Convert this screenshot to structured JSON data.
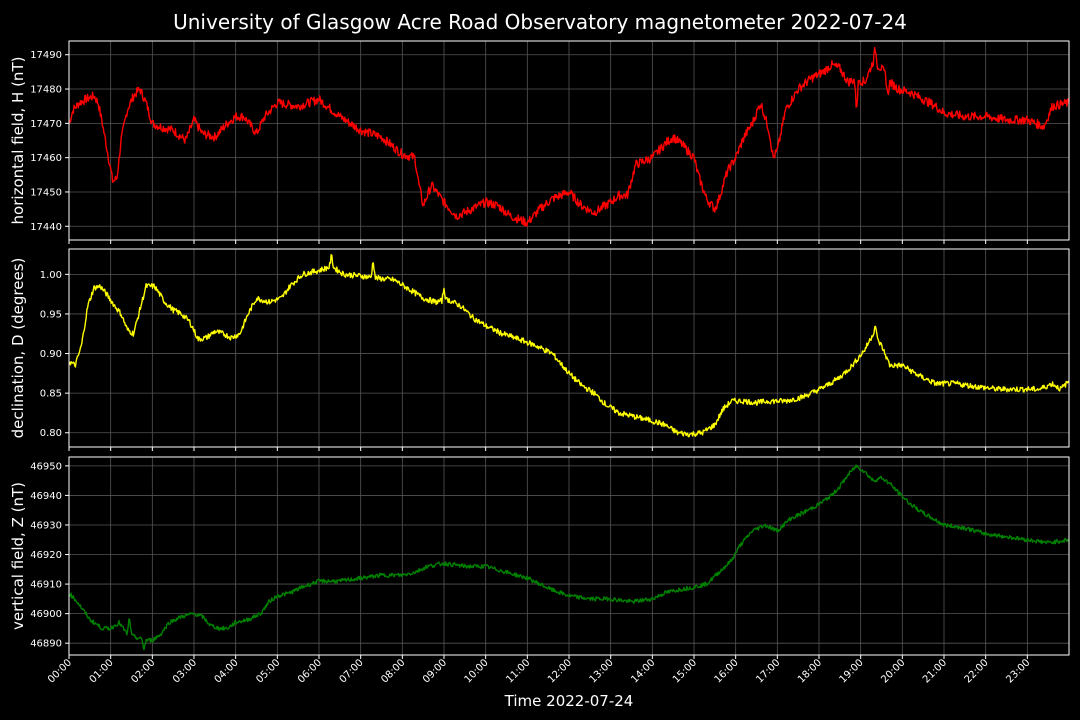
{
  "chart_data": {
    "type": "line",
    "title": "University of Glasgow Acre Road Observatory magnetometer 2022-07-24",
    "xlabel": "Time 2022-07-24",
    "x_unit": "hours",
    "x_ticks": [
      "00:00",
      "01:00",
      "02:00",
      "03:00",
      "04:00",
      "05:00",
      "06:00",
      "07:00",
      "08:00",
      "09:00",
      "10:00",
      "11:00",
      "12:00",
      "13:00",
      "14:00",
      "15:00",
      "16:00",
      "17:00",
      "18:00",
      "19:00",
      "20:00",
      "21:00",
      "22:00",
      "23:00"
    ],
    "xlim": [
      0,
      24
    ],
    "grid": true,
    "panels": [
      {
        "name": "horizontal",
        "ylabel": "horizontal field, H (nT)",
        "color": "#ff0000",
        "ylim": [
          17436,
          17494
        ],
        "y_ticks": [
          17440,
          17450,
          17460,
          17470,
          17480,
          17490
        ],
        "noise": 1.3,
        "points": [
          [
            0,
            17470
          ],
          [
            0.1,
            17474
          ],
          [
            0.25,
            17476
          ],
          [
            0.4,
            17477
          ],
          [
            0.6,
            17478
          ],
          [
            0.7,
            17476
          ],
          [
            0.8,
            17470
          ],
          [
            0.95,
            17460
          ],
          [
            1.05,
            17453
          ],
          [
            1.15,
            17454
          ],
          [
            1.25,
            17465
          ],
          [
            1.4,
            17474
          ],
          [
            1.55,
            17478
          ],
          [
            1.7,
            17480
          ],
          [
            1.85,
            17476
          ],
          [
            2.0,
            17470
          ],
          [
            2.2,
            17469
          ],
          [
            2.5,
            17468
          ],
          [
            2.8,
            17465
          ],
          [
            3.0,
            17471
          ],
          [
            3.2,
            17467
          ],
          [
            3.5,
            17466
          ],
          [
            3.8,
            17470
          ],
          [
            4.0,
            17472
          ],
          [
            4.2,
            17472
          ],
          [
            4.5,
            17467
          ],
          [
            4.7,
            17472
          ],
          [
            5.0,
            17476
          ],
          [
            5.5,
            17475
          ],
          [
            6.0,
            17477
          ],
          [
            6.5,
            17472
          ],
          [
            7.0,
            17468
          ],
          [
            7.5,
            17466
          ],
          [
            8.0,
            17461
          ],
          [
            8.3,
            17460
          ],
          [
            8.4,
            17452
          ],
          [
            8.5,
            17446
          ],
          [
            8.7,
            17452
          ],
          [
            9.0,
            17447
          ],
          [
            9.3,
            17443
          ],
          [
            9.5,
            17444
          ],
          [
            10.0,
            17447
          ],
          [
            10.3,
            17446
          ],
          [
            10.6,
            17443
          ],
          [
            10.8,
            17442
          ],
          [
            11.0,
            17441
          ],
          [
            11.3,
            17445
          ],
          [
            11.6,
            17448
          ],
          [
            12.0,
            17450
          ],
          [
            12.3,
            17446
          ],
          [
            12.6,
            17444
          ],
          [
            13.0,
            17447
          ],
          [
            13.2,
            17449
          ],
          [
            13.4,
            17449
          ],
          [
            13.6,
            17458
          ],
          [
            14.0,
            17460
          ],
          [
            14.3,
            17464
          ],
          [
            14.5,
            17466
          ],
          [
            14.7,
            17464
          ],
          [
            15.0,
            17460
          ],
          [
            15.1,
            17455
          ],
          [
            15.3,
            17448
          ],
          [
            15.5,
            17445
          ],
          [
            15.6,
            17448
          ],
          [
            15.8,
            17456
          ],
          [
            16.0,
            17460
          ],
          [
            16.2,
            17466
          ],
          [
            16.4,
            17470
          ],
          [
            16.6,
            17476
          ],
          [
            16.8,
            17468
          ],
          [
            16.9,
            17460
          ],
          [
            17.0,
            17462
          ],
          [
            17.2,
            17474
          ],
          [
            17.5,
            17480
          ],
          [
            17.8,
            17483
          ],
          [
            18.1,
            17485
          ],
          [
            18.3,
            17487
          ],
          [
            18.5,
            17486
          ],
          [
            18.7,
            17482
          ],
          [
            18.9,
            17483
          ],
          [
            19.1,
            17482
          ],
          [
            19.3,
            17488
          ],
          [
            19.5,
            17486
          ],
          [
            19.7,
            17482
          ],
          [
            19.9,
            17480
          ],
          [
            20.2,
            17479
          ],
          [
            20.5,
            17477
          ],
          [
            20.8,
            17475
          ],
          [
            21.0,
            17473
          ],
          [
            21.5,
            17472
          ],
          [
            22.0,
            17472
          ],
          [
            22.5,
            17471
          ],
          [
            23.0,
            17471
          ],
          [
            23.4,
            17469
          ],
          [
            23.6,
            17475
          ],
          [
            24.0,
            17476
          ]
        ],
        "spikes": [
          [
            18.9,
            17474
          ],
          [
            19.35,
            17492
          ],
          [
            19.65,
            17478
          ]
        ]
      },
      {
        "name": "declination",
        "ylabel": "declination, D (degrees)",
        "color": "#ffff00",
        "ylim": [
          0.782,
          1.032
        ],
        "y_ticks": [
          0.8,
          0.85,
          0.9,
          0.95,
          1.0
        ],
        "y_decimals": 2,
        "noise": 0.0035,
        "points": [
          [
            0,
            0.89
          ],
          [
            0.15,
            0.885
          ],
          [
            0.3,
            0.91
          ],
          [
            0.45,
            0.96
          ],
          [
            0.6,
            0.983
          ],
          [
            0.75,
            0.985
          ],
          [
            0.9,
            0.975
          ],
          [
            1.1,
            0.96
          ],
          [
            1.25,
            0.95
          ],
          [
            1.4,
            0.93
          ],
          [
            1.55,
            0.925
          ],
          [
            1.7,
            0.955
          ],
          [
            1.85,
            0.985
          ],
          [
            2.05,
            0.985
          ],
          [
            2.3,
            0.965
          ],
          [
            2.5,
            0.955
          ],
          [
            2.7,
            0.95
          ],
          [
            2.9,
            0.94
          ],
          [
            3.1,
            0.918
          ],
          [
            3.3,
            0.92
          ],
          [
            3.5,
            0.928
          ],
          [
            3.7,
            0.925
          ],
          [
            3.9,
            0.92
          ],
          [
            4.1,
            0.925
          ],
          [
            4.3,
            0.95
          ],
          [
            4.5,
            0.97
          ],
          [
            4.8,
            0.965
          ],
          [
            5.1,
            0.97
          ],
          [
            5.3,
            0.985
          ],
          [
            5.6,
            1.0
          ],
          [
            6.0,
            1.005
          ],
          [
            6.3,
            1.01
          ],
          [
            6.6,
            1.0
          ],
          [
            7.0,
            0.998
          ],
          [
            7.4,
            0.995
          ],
          [
            7.8,
            0.993
          ],
          [
            8.2,
            0.98
          ],
          [
            8.5,
            0.97
          ],
          [
            8.8,
            0.965
          ],
          [
            9.1,
            0.968
          ],
          [
            9.4,
            0.96
          ],
          [
            9.7,
            0.945
          ],
          [
            10.0,
            0.935
          ],
          [
            10.4,
            0.925
          ],
          [
            10.8,
            0.918
          ],
          [
            11.2,
            0.91
          ],
          [
            11.6,
            0.9
          ],
          [
            12.0,
            0.875
          ],
          [
            12.3,
            0.86
          ],
          [
            12.6,
            0.85
          ],
          [
            12.9,
            0.835
          ],
          [
            13.2,
            0.825
          ],
          [
            13.6,
            0.82
          ],
          [
            14.0,
            0.815
          ],
          [
            14.3,
            0.81
          ],
          [
            14.6,
            0.8
          ],
          [
            14.9,
            0.798
          ],
          [
            15.2,
            0.8
          ],
          [
            15.5,
            0.81
          ],
          [
            15.7,
            0.83
          ],
          [
            15.9,
            0.84
          ],
          [
            16.2,
            0.84
          ],
          [
            16.5,
            0.838
          ],
          [
            16.8,
            0.84
          ],
          [
            17.2,
            0.84
          ],
          [
            17.6,
            0.845
          ],
          [
            17.9,
            0.852
          ],
          [
            18.2,
            0.86
          ],
          [
            18.5,
            0.87
          ],
          [
            18.8,
            0.885
          ],
          [
            19.1,
            0.905
          ],
          [
            19.3,
            0.925
          ],
          [
            19.5,
            0.91
          ],
          [
            19.7,
            0.885
          ],
          [
            20.0,
            0.885
          ],
          [
            20.4,
            0.872
          ],
          [
            20.8,
            0.862
          ],
          [
            21.3,
            0.862
          ],
          [
            21.8,
            0.858
          ],
          [
            22.3,
            0.855
          ],
          [
            22.8,
            0.855
          ],
          [
            23.3,
            0.855
          ],
          [
            23.6,
            0.862
          ],
          [
            23.8,
            0.855
          ],
          [
            24.0,
            0.865
          ]
        ],
        "spikes": [
          [
            6.3,
            1.024
          ],
          [
            7.3,
            1.018
          ],
          [
            9.0,
            0.983
          ],
          [
            19.35,
            0.937
          ]
        ]
      },
      {
        "name": "vertical",
        "ylabel": "vertical field, Z (nT)",
        "color": "#008000",
        "ylim": [
          46886,
          46953
        ],
        "y_ticks": [
          46890,
          46900,
          46910,
          46920,
          46930,
          46940,
          46950
        ],
        "noise": 0.7,
        "points": [
          [
            0,
            46907
          ],
          [
            0.2,
            46904
          ],
          [
            0.5,
            46898
          ],
          [
            0.8,
            46895
          ],
          [
            1.0,
            46895
          ],
          [
            1.2,
            46897
          ],
          [
            1.4,
            46893
          ],
          [
            1.6,
            46892
          ],
          [
            1.8,
            46891
          ],
          [
            2.0,
            46891
          ],
          [
            2.2,
            46893
          ],
          [
            2.4,
            46897
          ],
          [
            2.7,
            46899
          ],
          [
            3.0,
            46900
          ],
          [
            3.2,
            46899
          ],
          [
            3.4,
            46896
          ],
          [
            3.6,
            46895
          ],
          [
            3.8,
            46895
          ],
          [
            4.0,
            46897
          ],
          [
            4.3,
            46898
          ],
          [
            4.6,
            46900
          ],
          [
            4.8,
            46904
          ],
          [
            5.0,
            46906
          ],
          [
            5.3,
            46907
          ],
          [
            5.6,
            46909
          ],
          [
            6.0,
            46911
          ],
          [
            6.5,
            46911
          ],
          [
            7.0,
            46912
          ],
          [
            7.5,
            46913
          ],
          [
            8.0,
            46913
          ],
          [
            8.3,
            46914
          ],
          [
            8.6,
            46916
          ],
          [
            9.0,
            46917
          ],
          [
            9.5,
            46916
          ],
          [
            10.0,
            46916
          ],
          [
            10.5,
            46914
          ],
          [
            11.0,
            46912
          ],
          [
            11.3,
            46910
          ],
          [
            11.6,
            46908
          ],
          [
            12.0,
            46906
          ],
          [
            12.5,
            46905
          ],
          [
            13.0,
            46905
          ],
          [
            13.5,
            46904
          ],
          [
            14.0,
            46905
          ],
          [
            14.3,
            46907
          ],
          [
            14.6,
            46908
          ],
          [
            15.0,
            46909
          ],
          [
            15.3,
            46910
          ],
          [
            15.6,
            46914
          ],
          [
            15.9,
            46918
          ],
          [
            16.1,
            46923
          ],
          [
            16.4,
            46928
          ],
          [
            16.7,
            46930
          ],
          [
            17.0,
            46928
          ],
          [
            17.3,
            46932
          ],
          [
            17.6,
            46934
          ],
          [
            18.0,
            46937
          ],
          [
            18.3,
            46940
          ],
          [
            18.5,
            46943
          ],
          [
            18.7,
            46947
          ],
          [
            18.9,
            46950
          ],
          [
            19.1,
            46948
          ],
          [
            19.3,
            46945
          ],
          [
            19.5,
            46946
          ],
          [
            19.7,
            46944
          ],
          [
            19.9,
            46941
          ],
          [
            20.2,
            46937
          ],
          [
            20.5,
            46934
          ],
          [
            21.0,
            46930
          ],
          [
            21.5,
            46929
          ],
          [
            22.0,
            46927
          ],
          [
            22.5,
            46926
          ],
          [
            23.0,
            46925
          ],
          [
            23.5,
            46924
          ],
          [
            24.0,
            46925
          ]
        ],
        "spikes": [
          [
            1.8,
            46888
          ],
          [
            1.45,
            46899
          ]
        ]
      }
    ]
  }
}
